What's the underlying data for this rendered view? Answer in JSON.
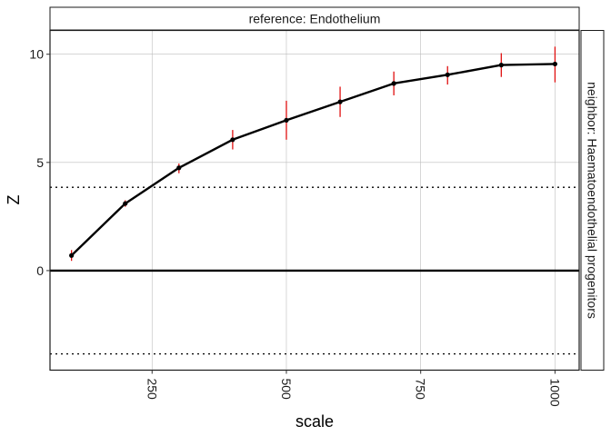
{
  "chart_data": {
    "type": "line",
    "facet_top_label": "reference: Endothelium",
    "facet_right_label": "neighbor: Haematoendothelial progenitors",
    "xlabel": "scale",
    "ylabel": "Z",
    "xlim": [
      60,
      1045
    ],
    "ylim": [
      -4.6,
      11.1
    ],
    "x_ticks": [
      250,
      500,
      750,
      1000
    ],
    "y_ticks": [
      0,
      5,
      10
    ],
    "reference_lines": [
      {
        "y": 0,
        "style": "solid"
      },
      {
        "y": 3.85,
        "style": "dotted"
      },
      {
        "y": -3.85,
        "style": "dotted"
      }
    ],
    "grid": true,
    "colors": {
      "line": "#000000",
      "error_bar": "#e01010",
      "point": "#000000"
    },
    "series": [
      {
        "x": [
          100,
          200,
          300,
          400,
          500,
          600,
          700,
          800,
          900,
          1000
        ],
        "y": [
          0.7,
          3.1,
          4.75,
          6.05,
          6.95,
          7.8,
          8.65,
          9.05,
          9.5,
          9.55
        ],
        "err_low": [
          0.45,
          2.95,
          4.5,
          5.6,
          6.05,
          7.1,
          8.1,
          8.6,
          8.95,
          8.7
        ],
        "err_high": [
          0.95,
          3.25,
          4.95,
          6.5,
          7.85,
          8.5,
          9.2,
          9.45,
          10.05,
          10.35
        ]
      }
    ]
  }
}
